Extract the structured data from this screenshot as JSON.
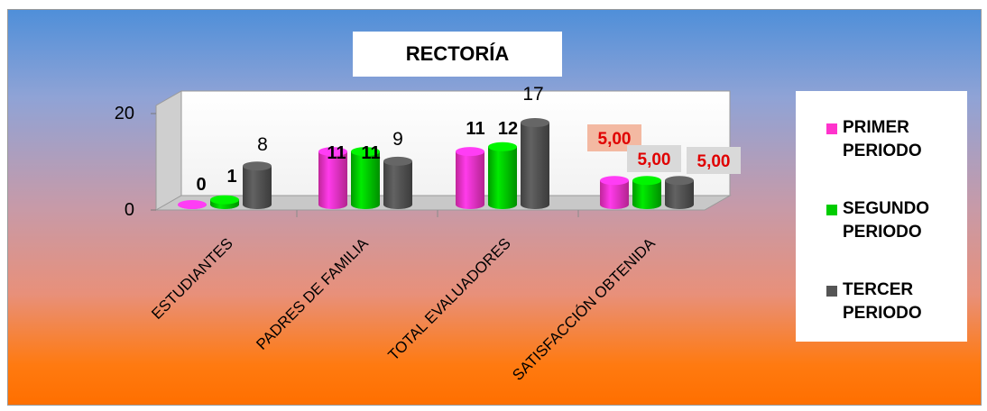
{
  "chart_data": {
    "type": "bar",
    "title": "RECTORÍA",
    "categories": [
      "ESTUDIANTES",
      "PADRES DE FAMILIA",
      "TOTAL EVALUADORES",
      "SATISFACCIÓN OBTENIDA"
    ],
    "series": [
      {
        "name": "PRIMER PERIODO",
        "color": "#ff33cc",
        "values": [
          0,
          11,
          11,
          5
        ],
        "labels": [
          "0",
          "11",
          "11",
          "5,00"
        ]
      },
      {
        "name": "SEGUNDO PERIODO",
        "color": "#00cc00",
        "values": [
          1,
          11,
          12,
          5
        ],
        "labels": [
          "1",
          "11",
          "12",
          "5,00"
        ]
      },
      {
        "name": "TERCER PERIODO",
        "color": "#555555",
        "values": [
          8,
          9,
          17,
          5
        ],
        "labels": [
          "8",
          "9",
          "17",
          "5,00"
        ]
      }
    ],
    "yticks": [
      0,
      20
    ],
    "ytick_labels": [
      "0",
      "20"
    ],
    "ylim": [
      0,
      20
    ],
    "legend_position": "right",
    "bar_style": "3d-cylinder"
  }
}
